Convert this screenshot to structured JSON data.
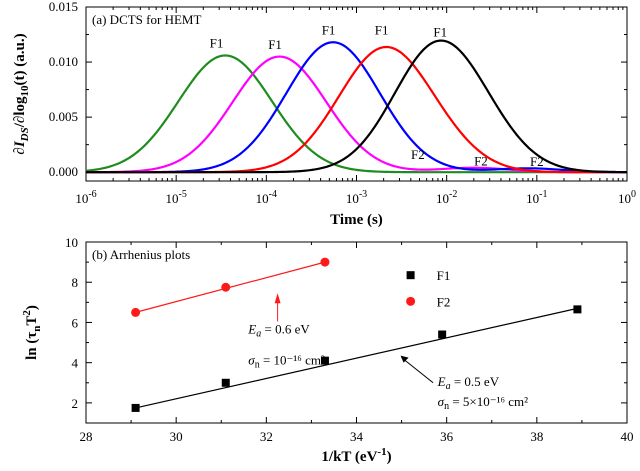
{
  "chart_data": [
    {
      "type": "line",
      "panel": "(a)",
      "title": "DCTS for HEMT",
      "xlabel": "Time (s)",
      "ylabel": "∂I_DS/∂log10(t) (a.u.)",
      "x_scale": "log",
      "xlim": [
        1e-06,
        1
      ],
      "ylim": [
        -0.0008,
        0.015
      ],
      "x_tick_exponents": [
        "-6",
        "-5",
        "-4",
        "-3",
        "-2",
        "-1",
        "0"
      ],
      "y_ticks": [
        "0.000",
        "0.005",
        "0.010",
        "0.015"
      ],
      "peak_labels": [
        "F1",
        "F2"
      ],
      "grid": false,
      "series": [
        {
          "color": "#1e8c1e",
          "F1": {
            "peak_time": 3.5e-05,
            "peak_value": 0.0106,
            "label_time": 2.8e-05,
            "label_value": 0.0113
          }
        },
        {
          "color": "#ff00ff",
          "F1": {
            "peak_time": 0.00014,
            "peak_value": 0.0105,
            "label_time": 0.000125,
            "label_value": 0.0112
          },
          "F2": {
            "peak_time": 0.02,
            "peak_value": 0.0004,
            "label_time": 0.024,
            "label_value": 0.0006
          }
        },
        {
          "color": "#0000ff",
          "F1": {
            "peak_time": 0.00055,
            "peak_value": 0.0118,
            "label_time": 0.00049,
            "label_value": 0.0125
          },
          "F2": {
            "peak_time": 0.08,
            "peak_value": 0.00035,
            "label_time": 0.1,
            "label_value": 0.00055
          }
        },
        {
          "color": "#ff0000",
          "F1": {
            "peak_time": 0.0021,
            "peak_value": 0.0113,
            "label_time": 0.0019,
            "label_value": 0.0125
          },
          "F2": {
            "peak_time": 0.012,
            "peak_value": 0.0005
          }
        },
        {
          "color": "#000000",
          "F1": {
            "peak_time": 0.0095,
            "peak_value": 0.011,
            "label_time": 0.0085,
            "label_value": 0.0123
          },
          "F2": {
            "peak_time": 0.005,
            "peak_value": 0.0012,
            "label_time": 0.0048,
            "label_value": 0.0012
          }
        }
      ]
    },
    {
      "type": "scatter",
      "panel": "(b)",
      "title": "Arrhenius plots",
      "xlabel": "1/kT (eV⁻¹)",
      "ylabel": "ln (τnT²)",
      "xlim": [
        28,
        40
      ],
      "ylim": [
        1,
        10
      ],
      "x_ticks": [
        "28",
        "30",
        "32",
        "34",
        "36",
        "38",
        "40"
      ],
      "y_ticks": [
        "2",
        "4",
        "6",
        "8",
        "10"
      ],
      "legend_position": "top-right",
      "grid": false,
      "series": [
        {
          "name": "F1",
          "marker": "square",
          "color": "#000000",
          "x": [
            29.1,
            31.1,
            33.3,
            35.9,
            38.9
          ],
          "y": [
            1.75,
            3.0,
            4.1,
            5.4,
            6.65
          ],
          "fit": [
            [
              29.1,
              1.75
            ],
            [
              38.9,
              6.7
            ]
          ],
          "Ea": "0.5 eV",
          "sigma": "5×10⁻¹⁶ cm²"
        },
        {
          "name": "F2",
          "marker": "circle",
          "color": "#ff1a1a",
          "x": [
            29.1,
            31.1,
            33.3
          ],
          "y": [
            6.5,
            7.75,
            9.0
          ],
          "fit": [
            [
              29.1,
              6.5
            ],
            [
              33.3,
              9.0
            ]
          ],
          "Ea": "0.6 eV",
          "sigma": "10⁻¹⁶ cm²"
        }
      ]
    }
  ]
}
